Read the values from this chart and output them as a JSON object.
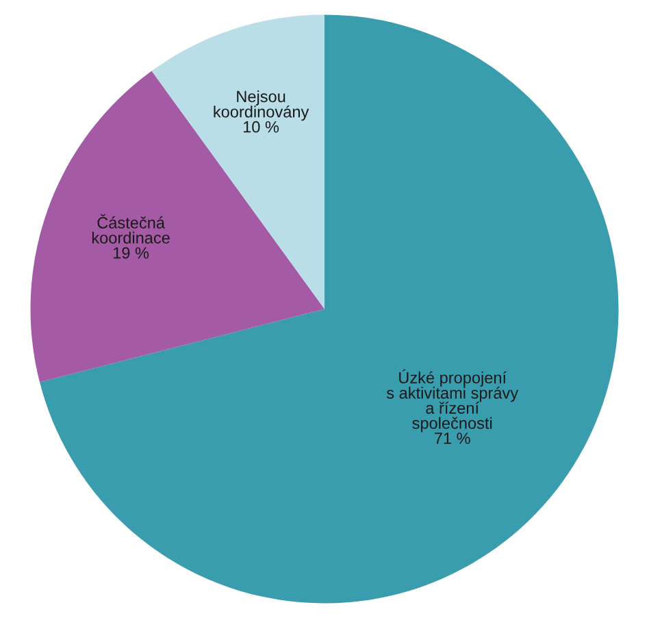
{
  "chart_data": {
    "type": "pie",
    "categories": [
      "Úzké propojení\ns aktivitami správy\na řízení\nspolečnosti",
      "Částečná\nkoordinace",
      "Nejsou\nkoordinovány"
    ],
    "values": [
      71,
      19,
      10
    ],
    "value_labels": [
      "71 %",
      "19 %",
      "10 %"
    ],
    "colors": [
      "#3a9dad",
      "#a45aa5",
      "#b9dee7"
    ],
    "legend": false
  }
}
